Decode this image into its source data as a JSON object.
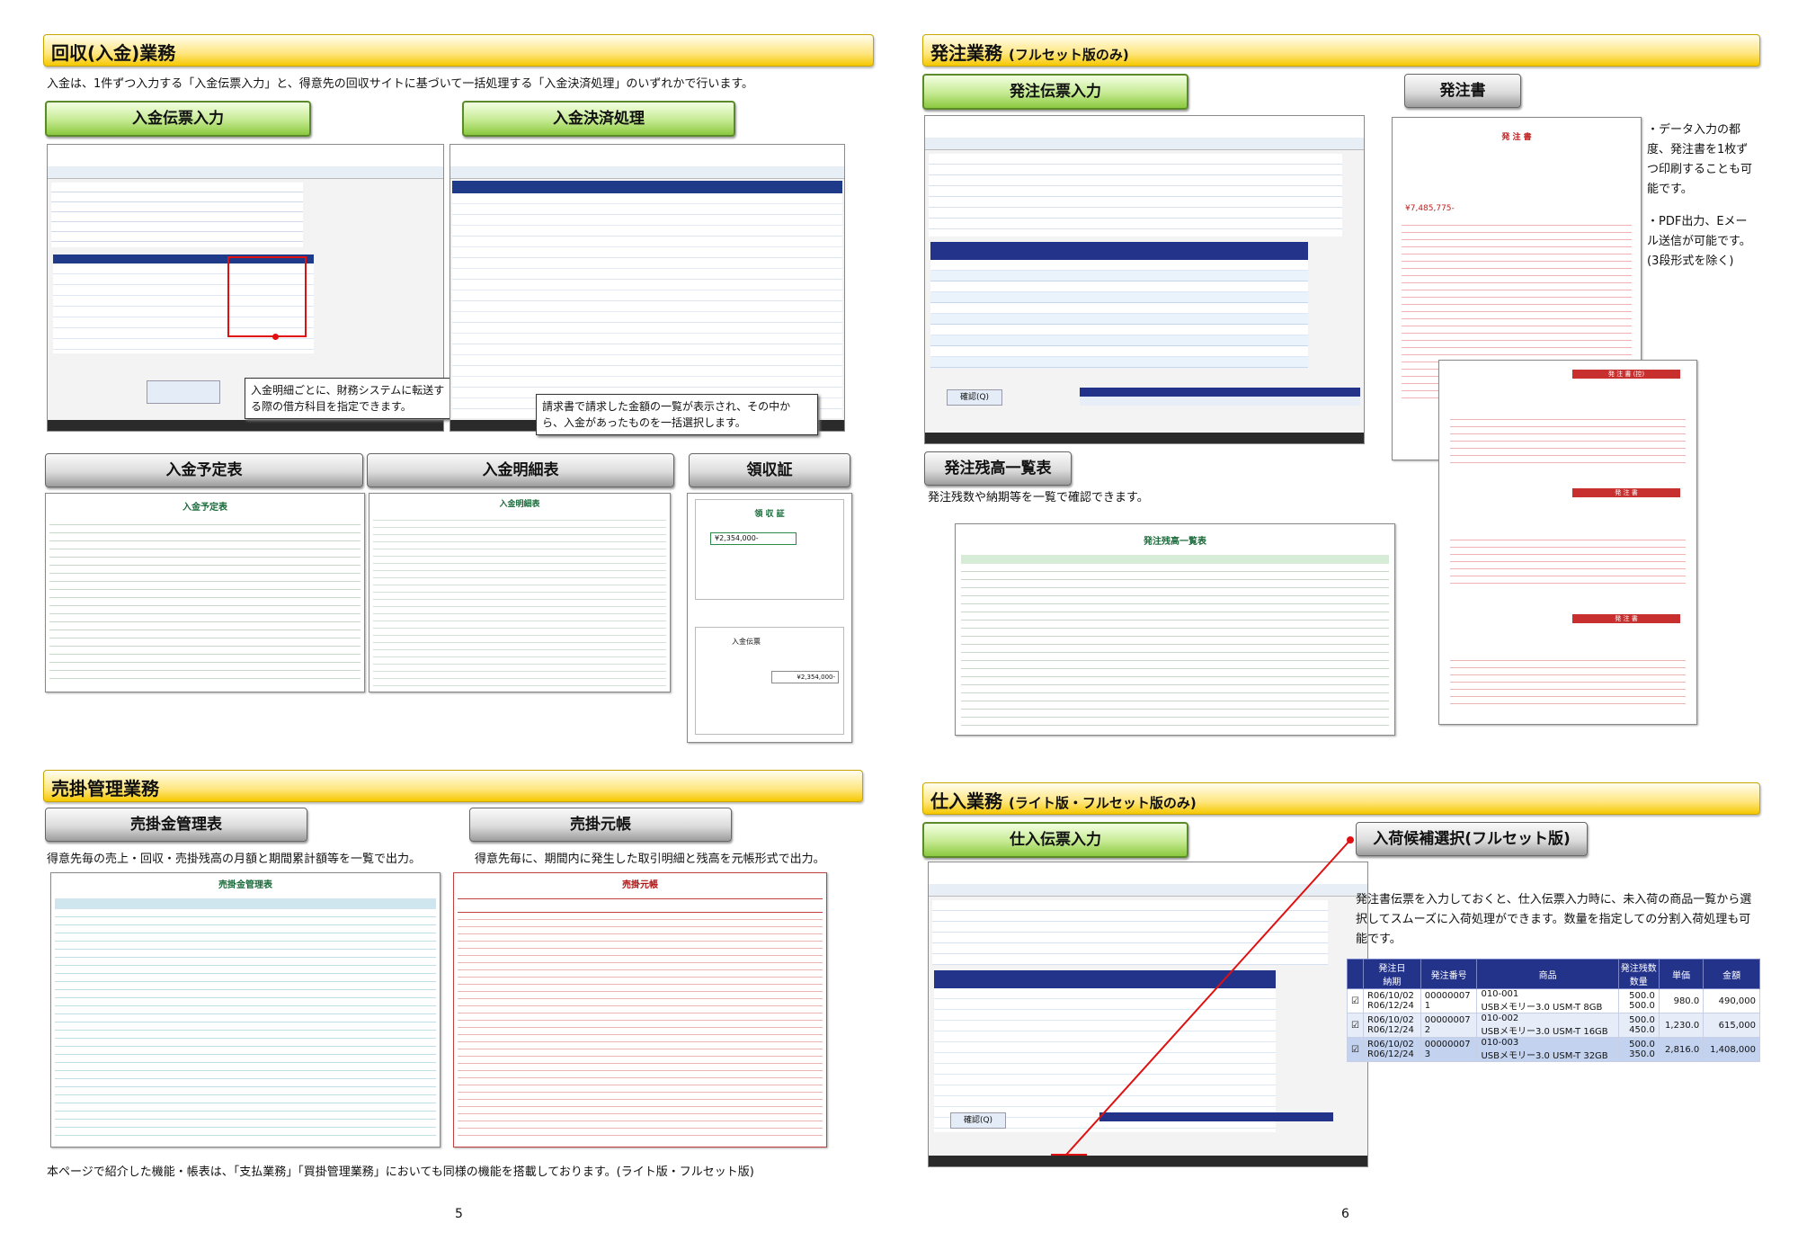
{
  "left": {
    "collection": {
      "section_title": "回収(入金)業務",
      "description": "入金は、1件ずつ入力する「入金伝票入力」と、得意先の回収サイトに基づいて一括処理する「入金決済処理」のいずれかで行います。",
      "tab_voucher": "入金伝票入力",
      "tab_settlement": "入金決済処理",
      "callout_voucher": "入金明細ごとに、財務システムに転送する際の借方科目を指定できます。",
      "callout_settlement": "請求書で請求した金額の一覧が表示され、その中から、入金があったものを一括選択します。",
      "tab_schedule": "入金予定表",
      "tab_detail": "入金明細表",
      "tab_receipt": "領収証",
      "doc_schedule_title": "入金予定表",
      "doc_detail_title": "入金明細表",
      "doc_receipt_title": "領 収 証",
      "doc_slip_title": "入金伝票",
      "receipt_amount": "¥2,354,000-"
    },
    "receivables": {
      "section_title": "売掛管理業務",
      "tab_ledger_mgmt": "売掛金管理表",
      "tab_subledger": "売掛元帳",
      "desc_mgmt": "得意先毎の売上・回収・売掛残高の月額と期間累計額等を一覧で出力。",
      "desc_subledger": "得意先毎に、期間内に発生した取引明細と残高を元帳形式で出力。",
      "doc_mgmt_title": "売掛金管理表",
      "doc_subledger_title": "売掛元帳"
    },
    "footnote": "本ページで紹介した機能・帳表は、「支払業務」「買掛管理業務」においても同様の機能を搭載しております。(ライト版・フルセット版)",
    "page_number": "5"
  },
  "right": {
    "ordering": {
      "section_title": "発注業務",
      "section_sub": "(フルセット版のみ)",
      "tab_voucher": "発注伝票入力",
      "tab_po": "発注書",
      "po_note_1": "・データ入力の都度、発注書を1枚ずつ印刷することも可能です。",
      "po_note_2": "・PDF出力、Eメール送信が可能です。(3段形式を除く)",
      "tab_backlog": "発注残高一覧表",
      "backlog_desc": "発注残数や納期等を一覧で確認できます。",
      "doc_backlog_title": "発注残高一覧表",
      "po_title": "発 注 書",
      "po_copy_title": "発 注 書 (控)",
      "po_total": "¥7,485,775-",
      "confirm_button": "確認(Q)"
    },
    "purchasing": {
      "section_title": "仕入業務",
      "section_sub": "(ライト版・フルセット版のみ)",
      "tab_voucher": "仕入伝票入力",
      "tab_candidates": "入荷候補選択(フルセット版)",
      "desc": "発注書伝票を入力しておくと、仕入伝票入力時に、未入荷の商品一覧から選択してスムーズに入荷処理ができます。数量を指定しての分割入荷処理も可能です。",
      "confirm_button": "確認(Q)",
      "candidates": {
        "headers": [
          "発注日",
          "納期",
          "発注番号",
          "商品",
          "発注残数",
          "数量",
          "単価",
          "金額"
        ],
        "rows": [
          {
            "order_date": "R06/10/02",
            "due": "R06/12/24",
            "order_no": "00000007",
            "line": "1",
            "code": "010-001",
            "product": "USBメモリー3.0 USM-T 8GB",
            "remain": "500.0",
            "qty": "500.0",
            "price": "980.0",
            "amount": "490,000"
          },
          {
            "order_date": "R06/10/02",
            "due": "R06/12/24",
            "order_no": "00000007",
            "line": "2",
            "code": "010-002",
            "product": "USBメモリー3.0 USM-T 16GB",
            "remain": "500.0",
            "qty": "450.0",
            "price": "1,230.0",
            "amount": "615,000"
          },
          {
            "order_date": "R06/10/02",
            "due": "R06/12/24",
            "order_no": "00000007",
            "line": "3",
            "code": "010-003",
            "product": "USBメモリー3.0 USM-T 32GB",
            "remain": "500.0",
            "qty": "350.0",
            "price": "2,816.0",
            "amount": "1,408,000"
          }
        ]
      }
    },
    "page_number": "6"
  },
  "colors": {
    "section_bar": "#ffe680",
    "green_tab": "#a6d86a",
    "gray_tab": "#cfcfcf",
    "table_header": "#24338a",
    "callout_line": "#e01010"
  }
}
